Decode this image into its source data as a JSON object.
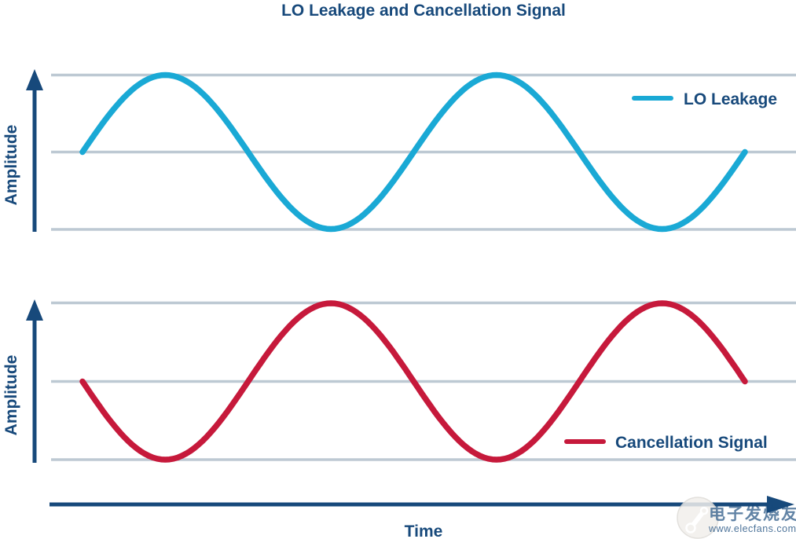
{
  "colors": {
    "navy": "#17497B",
    "cyan": "#1AA9D5",
    "crimson": "#C6193B",
    "gridline": "#BDC9D3"
  },
  "chart_data": {
    "type": "line",
    "title": "LO Leakage and Cancellation Signal",
    "xlabel": "Time",
    "panels": [
      {
        "ylabel": "Amplitude",
        "ylim": [
          -1,
          1
        ],
        "gridlines_y": [
          1,
          0,
          -1
        ],
        "legend": {
          "label": "LO Leakage",
          "position": "upper right"
        },
        "series": [
          {
            "name": "LO Leakage",
            "color": "#1AA9D5",
            "waveform": "sine",
            "amplitude": 1,
            "cycles": 2,
            "phase_deg": 0
          }
        ]
      },
      {
        "ylabel": "Amplitude",
        "ylim": [
          -1,
          1
        ],
        "gridlines_y": [
          1,
          0,
          -1
        ],
        "legend": {
          "label": "Cancellation Signal",
          "position": "lower right"
        },
        "series": [
          {
            "name": "Cancellation Signal",
            "color": "#C6193B",
            "waveform": "sine",
            "amplitude": 1,
            "cycles": 2,
            "phase_deg": 180
          }
        ]
      }
    ]
  },
  "watermark": {
    "logo": "elecfans-logo",
    "text": "电子发烧友",
    "subtext": "www.elecfans.com"
  }
}
